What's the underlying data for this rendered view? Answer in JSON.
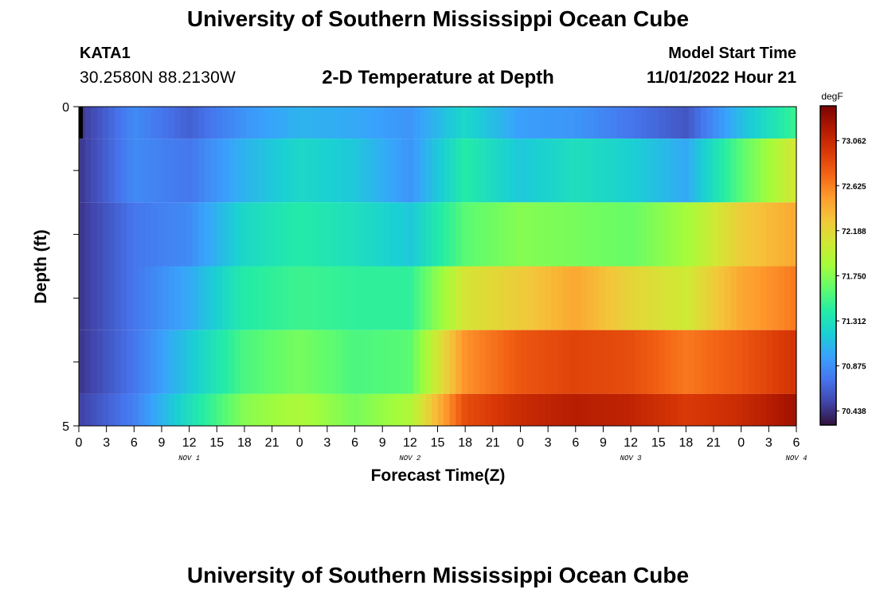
{
  "header": {
    "title": "University of Southern Mississippi Ocean Cube",
    "station_id": "KATA1",
    "station_coords": "30.2580N  88.2130W",
    "subtitle": "2-D Temperature at Depth",
    "model_start_label": "Model Start Time",
    "model_start_value": "11/01/2022 Hour 21"
  },
  "footer": {
    "title": "University of Southern Mississippi Ocean Cube"
  },
  "colors": {
    "colormap": [
      "#30123b",
      "#4145ab",
      "#4675ed",
      "#39a2fc",
      "#1bcfd4",
      "#24eca6",
      "#61fc6c",
      "#a4fc3b",
      "#d1e834",
      "#f3c63a",
      "#fe9b2d",
      "#f36315",
      "#d93806",
      "#b11901",
      "#7a0402"
    ]
  },
  "chart_data": {
    "type": "heatmap",
    "title": "2-D Temperature at Depth",
    "xlabel": "Forecast Time(Z)",
    "ylabel": "Depth (ft)",
    "x_tick_labels": [
      "0",
      "3",
      "6",
      "9",
      "12",
      "15",
      "18",
      "21",
      "0",
      "3",
      "6",
      "9",
      "12",
      "15",
      "18",
      "21",
      "0",
      "3",
      "6",
      "9",
      "12",
      "15",
      "18",
      "21",
      "0",
      "3",
      "6"
    ],
    "x_day_labels": [
      {
        "label": "NOV 1",
        "tick_index": 4
      },
      {
        "label": "NOV 2",
        "tick_index": 12
      },
      {
        "label": "NOV 3",
        "tick_index": 20
      },
      {
        "label": "NOV 4",
        "tick_index": 26
      }
    ],
    "y_range": [
      0,
      5
    ],
    "y_tick_labels": [
      "0",
      "5"
    ],
    "y_tick_count": 6,
    "colorbar": {
      "unit": "degF",
      "min": 70.3,
      "max": 73.4,
      "tick_labels": [
        "73.062",
        "72.625",
        "72.188",
        "71.750",
        "71.312",
        "70.875",
        "70.438"
      ]
    },
    "time_hours": [
      0,
      6,
      12,
      18,
      24,
      30,
      36,
      42,
      48,
      54,
      60,
      66,
      72,
      78
    ],
    "rows": [
      {
        "depth_band": "0-0.5",
        "values": [
          70.45,
          70.85,
          70.65,
          70.9,
          71.05,
          71.0,
          70.9,
          71.25,
          70.95,
          70.9,
          70.75,
          70.6,
          71.1,
          71.5
        ]
      },
      {
        "depth_band": "0.5-1.5",
        "values": [
          70.45,
          70.85,
          70.75,
          71.05,
          71.25,
          71.15,
          70.9,
          71.4,
          71.15,
          71.3,
          71.2,
          71.0,
          71.6,
          72.1
        ]
      },
      {
        "depth_band": "1.5-2.5",
        "values": [
          70.45,
          70.75,
          70.85,
          71.25,
          71.4,
          71.3,
          71.15,
          71.6,
          71.75,
          71.7,
          71.65,
          71.85,
          72.25,
          72.45
        ]
      },
      {
        "depth_band": "2.5-3.5",
        "values": [
          70.45,
          70.75,
          71.0,
          71.4,
          71.5,
          71.45,
          71.45,
          72.1,
          72.25,
          72.45,
          72.2,
          72.05,
          72.45,
          72.65
        ]
      },
      {
        "depth_band": "3.5-4.5",
        "values": [
          70.45,
          70.75,
          71.15,
          71.55,
          71.7,
          71.55,
          71.6,
          72.55,
          72.8,
          72.9,
          72.85,
          72.65,
          72.8,
          73.0
        ]
      },
      {
        "depth_band": "4.5-5",
        "values": [
          70.5,
          70.8,
          71.3,
          71.75,
          71.9,
          71.7,
          71.9,
          72.85,
          73.05,
          73.15,
          73.1,
          72.95,
          73.05,
          73.25
        ]
      }
    ]
  }
}
